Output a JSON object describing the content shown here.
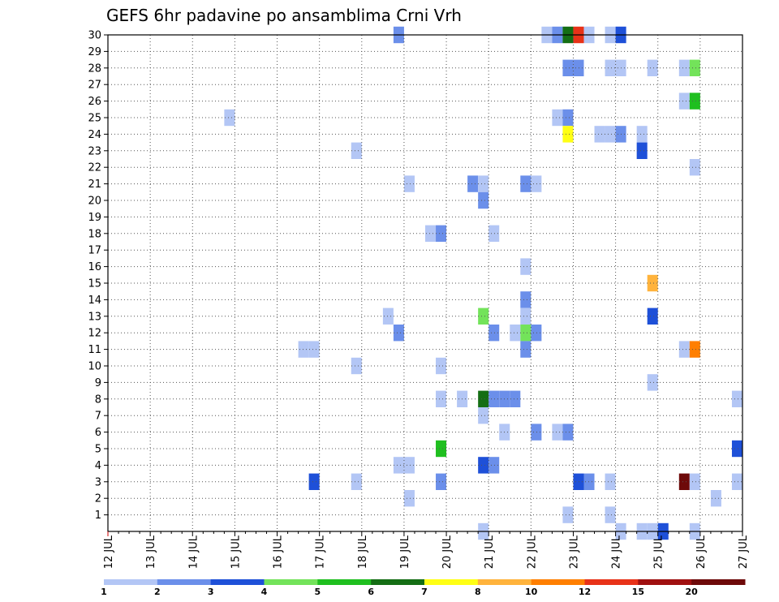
{
  "title": "GEFS 6hr padavine po ansamblima Crni Vrh",
  "chart_data": {
    "type": "heatmap",
    "title": "GEFS 6hr padavine po ansamblima Crni Vrh",
    "x_axis": {
      "unit": "6h steps",
      "range_days": [
        12,
        27
      ],
      "tick_labels": [
        "12 JUL",
        "13 JUL",
        "14 JUL",
        "15 JUL",
        "16 JUL",
        "17 JUL",
        "18 JUL",
        "19 JUL",
        "20 JUL",
        "21 JUL",
        "22 JUL",
        "23 JUL",
        "24 JUL",
        "25 JUL",
        "26 JUL",
        "27 JUL"
      ]
    },
    "y_axis": {
      "range": [
        0,
        30
      ],
      "tick_labels": [
        "1",
        "2",
        "3",
        "4",
        "5",
        "6",
        "7",
        "8",
        "9",
        "10",
        "11",
        "12",
        "13",
        "14",
        "15",
        "16",
        "17",
        "18",
        "19",
        "20",
        "21",
        "22",
        "23",
        "24",
        "25",
        "26",
        "27",
        "28",
        "29",
        "30"
      ]
    },
    "grid": true,
    "colorbar": {
      "levels": [
        "1",
        "2",
        "3",
        "4",
        "5",
        "6",
        "7",
        "8",
        "10",
        "12",
        "15",
        "20"
      ],
      "colors": [
        "#b3c6f5",
        "#6b8fea",
        "#1e50d8",
        "#73e35a",
        "#1fbf1f",
        "#146e14",
        "#ffff14",
        "#ffb33c",
        "#ff7f00",
        "#e83218",
        "#a01010",
        "#6e0a0a"
      ]
    },
    "cells": [
      [
        18.75,
        30,
        2
      ],
      [
        22.25,
        30,
        1
      ],
      [
        22.5,
        30,
        2
      ],
      [
        22.75,
        30,
        6
      ],
      [
        23.0,
        30,
        10
      ],
      [
        23.25,
        30,
        1
      ],
      [
        23.75,
        30,
        1
      ],
      [
        24.0,
        30,
        3
      ],
      [
        22.75,
        28,
        2
      ],
      [
        23.0,
        28,
        2
      ],
      [
        23.75,
        28,
        1
      ],
      [
        24.0,
        28,
        1
      ],
      [
        24.75,
        28,
        1
      ],
      [
        25.5,
        28,
        1
      ],
      [
        25.75,
        28,
        4
      ],
      [
        25.5,
        26,
        1
      ],
      [
        25.75,
        26,
        5
      ],
      [
        14.75,
        25,
        1
      ],
      [
        22.5,
        25,
        1
      ],
      [
        22.75,
        25,
        2
      ],
      [
        22.75,
        24,
        7
      ],
      [
        23.5,
        24,
        1
      ],
      [
        23.75,
        24,
        1
      ],
      [
        24.0,
        24,
        2
      ],
      [
        24.5,
        24,
        1
      ],
      [
        17.75,
        23,
        1
      ],
      [
        24.5,
        23,
        3
      ],
      [
        25.75,
        22,
        1
      ],
      [
        19.0,
        21,
        1
      ],
      [
        20.5,
        21,
        2
      ],
      [
        20.75,
        21,
        1
      ],
      [
        21.75,
        21,
        2
      ],
      [
        22.0,
        21,
        1
      ],
      [
        20.75,
        20,
        2
      ],
      [
        19.5,
        18,
        1
      ],
      [
        19.75,
        18,
        2
      ],
      [
        21.0,
        18,
        1
      ],
      [
        21.75,
        16,
        1
      ],
      [
        24.75,
        15,
        8
      ],
      [
        21.75,
        14,
        2
      ],
      [
        18.5,
        13,
        1
      ],
      [
        20.75,
        13,
        4
      ],
      [
        21.75,
        13,
        1
      ],
      [
        24.75,
        13,
        3
      ],
      [
        18.75,
        12,
        2
      ],
      [
        21.0,
        12,
        2
      ],
      [
        21.5,
        12,
        1
      ],
      [
        21.75,
        12,
        4
      ],
      [
        22.0,
        12,
        2
      ],
      [
        16.5,
        11,
        1
      ],
      [
        16.75,
        11,
        1
      ],
      [
        21.75,
        11,
        2
      ],
      [
        25.5,
        11,
        1
      ],
      [
        25.75,
        11,
        9
      ],
      [
        17.75,
        10,
        1
      ],
      [
        19.75,
        10,
        1
      ],
      [
        24.75,
        9,
        1
      ],
      [
        19.75,
        8,
        1
      ],
      [
        20.25,
        8,
        1
      ],
      [
        20.75,
        8,
        6
      ],
      [
        21.0,
        8,
        2
      ],
      [
        21.25,
        8,
        2
      ],
      [
        21.5,
        8,
        2
      ],
      [
        26.75,
        8,
        1
      ],
      [
        20.75,
        7,
        1
      ],
      [
        21.25,
        6,
        1
      ],
      [
        22.0,
        6,
        2
      ],
      [
        22.5,
        6,
        1
      ],
      [
        22.75,
        6,
        2
      ],
      [
        19.75,
        5,
        5
      ],
      [
        26.75,
        5,
        3
      ],
      [
        18.75,
        4,
        1
      ],
      [
        19.0,
        4,
        1
      ],
      [
        20.75,
        4,
        3
      ],
      [
        21.0,
        4,
        2
      ],
      [
        16.75,
        3,
        3
      ],
      [
        17.75,
        3,
        1
      ],
      [
        19.75,
        3,
        2
      ],
      [
        23.0,
        3,
        3
      ],
      [
        23.25,
        3,
        2
      ],
      [
        23.75,
        3,
        1
      ],
      [
        25.5,
        3,
        12
      ],
      [
        25.75,
        3,
        1
      ],
      [
        26.75,
        3,
        1
      ],
      [
        19.0,
        2,
        1
      ],
      [
        26.25,
        2,
        1
      ],
      [
        22.75,
        1,
        1
      ],
      [
        23.75,
        1,
        1
      ],
      [
        20.75,
        0,
        1
      ],
      [
        24.0,
        0,
        1
      ],
      [
        24.5,
        0,
        1
      ],
      [
        24.75,
        0,
        1
      ],
      [
        25.0,
        0,
        3
      ],
      [
        25.75,
        0,
        1
      ]
    ]
  }
}
